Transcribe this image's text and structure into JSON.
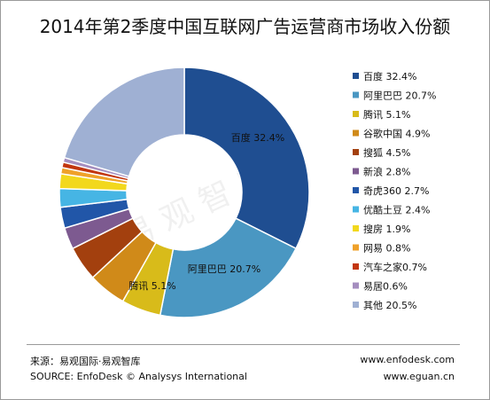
{
  "chart_data": {
    "type": "pie",
    "variant": "donut",
    "title": "2014年第2季度中国互联网广告运营商市场收入份额",
    "categories": [
      "百度",
      "阿里巴巴",
      "腾讯",
      "谷歌中国",
      "搜狐",
      "新浪",
      "奇虎360",
      "优酷土豆",
      "搜房",
      "网易",
      "汽车之家",
      "易居",
      "其他"
    ],
    "values": [
      32.4,
      20.7,
      5.1,
      4.9,
      4.5,
      2.8,
      2.7,
      2.4,
      1.9,
      0.8,
      0.7,
      0.6,
      20.5
    ],
    "unit": "%",
    "legend_labels": [
      "百度 32.4%",
      "阿里巴巴 20.7%",
      "腾讯 5.1%",
      "谷歌中国 4.9%",
      "搜狐 4.5%",
      "新浪 2.8%",
      "奇虎360 2.7%",
      "优酷土豆 2.4%",
      "搜房 1.9%",
      "网易 0.8%",
      "汽车之家0.7%",
      "易居0.6%",
      "其他 20.5%"
    ],
    "data_labels": [
      {
        "index": 0,
        "text": "百度 32.4%"
      },
      {
        "index": 1,
        "text": "阿里巴巴 20.7%"
      },
      {
        "index": 2,
        "text": "腾讯 5.1%"
      }
    ],
    "colors": [
      "#1f4e91",
      "#4a97c2",
      "#d8bb1a",
      "#d08a19",
      "#a3400e",
      "#7d5a90",
      "#2156a8",
      "#46b5e4",
      "#f2d81d",
      "#efa12a",
      "#c2360f",
      "#a58ebf",
      "#9fb0d3"
    ],
    "legend_position": "right",
    "start_angle_deg": 0,
    "direction": "clockwise"
  },
  "watermark": "易 观 智 库",
  "footer": {
    "source_cn": "来源：易观国际·易观智库",
    "source_en": "SOURCE: EnfoDesk © Analysys International",
    "url1": "www.enfodesk.com",
    "url2": "www.eguan.cn"
  }
}
